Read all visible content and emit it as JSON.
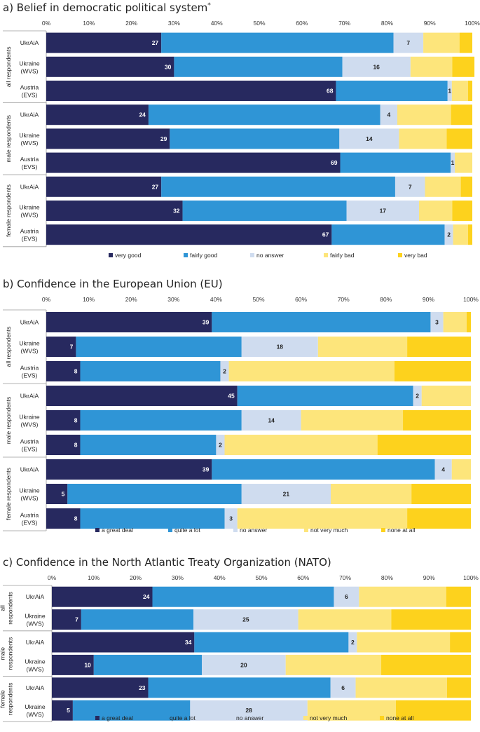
{
  "colors": {
    "very_dark": "#27295f",
    "blue": "#2f95d6",
    "light": "#cfdcef",
    "pale_yellow": "#fde57b",
    "yellow": "#fdd21d"
  },
  "x_tick_labels": [
    "0%",
    "10%",
    "20%",
    "30%",
    "40%",
    "50%",
    "60%",
    "70%",
    "80%",
    "90%",
    "100%"
  ],
  "chart_data": [
    {
      "type": "bar",
      "stacked": true,
      "orientation": "horizontal",
      "title": "a) Belief in democratic political system",
      "title_superscript": "*",
      "xlim": [
        0,
        100
      ],
      "legend": [
        "very good",
        "fairly good",
        "no answer",
        "fairly bad",
        "very bad"
      ],
      "groups": [
        {
          "label": "all respondents",
          "rows": [
            {
              "label": [
                "UkrAiA"
              ],
              "values": [
                27,
                54.5,
                7,
                8.5,
                3
              ],
              "shown": [
                27,
                null,
                7,
                null,
                null
              ]
            },
            {
              "label": [
                "Ukraine",
                "(WVS)"
              ],
              "values": [
                30,
                39.5,
                16,
                9.8,
                5.2
              ],
              "shown": [
                30,
                null,
                16,
                null,
                null
              ]
            },
            {
              "label": [
                "Austria",
                "(EVS)"
              ],
              "values": [
                68,
                26.2,
                1,
                3.8,
                1
              ],
              "shown": [
                68,
                null,
                1,
                null,
                null
              ]
            }
          ]
        },
        {
          "label": "male respondents",
          "rows": [
            {
              "label": [
                "UkrAiA"
              ],
              "values": [
                24,
                54.4,
                4,
                12.6,
                5
              ],
              "shown": [
                24,
                null,
                4,
                null,
                null
              ]
            },
            {
              "label": [
                "Ukraine",
                "(WVS)"
              ],
              "values": [
                29,
                39.8,
                14,
                11.2,
                6
              ],
              "shown": [
                29,
                null,
                14,
                null,
                null
              ]
            },
            {
              "label": [
                "Austria",
                "(EVS)"
              ],
              "values": [
                69,
                25.9,
                1,
                4.1,
                0
              ],
              "shown": [
                69,
                null,
                1,
                null,
                null
              ]
            }
          ]
        },
        {
          "label": "female respondents",
          "rows": [
            {
              "label": [
                "UkrAiA"
              ],
              "values": [
                27,
                54.9,
                7,
                8.4,
                2.7
              ],
              "shown": [
                27,
                null,
                7,
                null,
                null
              ]
            },
            {
              "label": [
                "Ukraine",
                "(WVS)"
              ],
              "values": [
                32,
                38.5,
                17,
                7.8,
                4.7
              ],
              "shown": [
                32,
                null,
                17,
                null,
                null
              ]
            },
            {
              "label": [
                "Austria",
                "(EVS)"
              ],
              "values": [
                67,
                26.5,
                2,
                3.5,
                1
              ],
              "shown": [
                67,
                null,
                2,
                null,
                null
              ]
            }
          ]
        }
      ]
    },
    {
      "type": "bar",
      "stacked": true,
      "orientation": "horizontal",
      "title": "b) Confidence in the European Union (EU)",
      "title_superscript": "",
      "xlim": [
        0,
        100
      ],
      "legend": [
        "a great deal",
        "quite a lot",
        "no answer",
        "not very much",
        "none at all"
      ],
      "groups": [
        {
          "label": "all respondents",
          "rows": [
            {
              "label": [
                "UkrAiA"
              ],
              "values": [
                39,
                51.5,
                3,
                5.5,
                1
              ],
              "shown": [
                39,
                null,
                3,
                null,
                null
              ]
            },
            {
              "label": [
                "Ukraine",
                "(WVS)"
              ],
              "values": [
                7,
                39,
                18,
                21,
                15
              ],
              "shown": [
                7,
                null,
                18,
                null,
                null
              ]
            },
            {
              "label": [
                "Austria",
                "(EVS)"
              ],
              "values": [
                8,
                33,
                2,
                39,
                18
              ],
              "shown": [
                8,
                null,
                2,
                null,
                null
              ]
            }
          ]
        },
        {
          "label": "male respondents",
          "rows": [
            {
              "label": [
                "UkrAiA"
              ],
              "values": [
                45,
                41.4,
                2,
                11.6,
                0
              ],
              "shown": [
                45,
                null,
                2,
                null,
                null
              ]
            },
            {
              "label": [
                "Ukraine",
                "(WVS)"
              ],
              "values": [
                8,
                38,
                14,
                24,
                16
              ],
              "shown": [
                8,
                null,
                14,
                null,
                null
              ]
            },
            {
              "label": [
                "Austria",
                "(EVS)"
              ],
              "values": [
                8,
                32,
                2,
                36,
                22
              ],
              "shown": [
                8,
                null,
                2,
                null,
                null
              ]
            }
          ]
        },
        {
          "label": "female respondents",
          "rows": [
            {
              "label": [
                "UkrAiA"
              ],
              "values": [
                39,
                52.5,
                4,
                4.5,
                0
              ],
              "shown": [
                39,
                null,
                4,
                null,
                null
              ]
            },
            {
              "label": [
                "Ukraine",
                "(WVS)"
              ],
              "values": [
                5,
                41,
                21,
                19,
                14
              ],
              "shown": [
                5,
                null,
                21,
                null,
                null
              ]
            },
            {
              "label": [
                "Austria",
                "(EVS)"
              ],
              "values": [
                8,
                34,
                3,
                40,
                15
              ],
              "shown": [
                8,
                null,
                3,
                null,
                null
              ]
            }
          ]
        }
      ]
    },
    {
      "type": "bar",
      "stacked": true,
      "orientation": "horizontal",
      "title": "c) Confidence in the North Atlantic Treaty Organization (NATO)",
      "title_superscript": "",
      "xlim": [
        0,
        100
      ],
      "legend": [
        "a great deal",
        "quite a lot",
        "no answer",
        "not very much",
        "none at all"
      ],
      "groups": [
        {
          "label": "all respondents",
          "label_lines": [
            "all",
            "respondents"
          ],
          "rows": [
            {
              "label": [
                "UkrAiA"
              ],
              "values": [
                24,
                43.3,
                6,
                20.8,
                5.9
              ],
              "shown": [
                24,
                null,
                6,
                null,
                null
              ]
            },
            {
              "label": [
                "Ukraine",
                "(WVS)"
              ],
              "values": [
                7,
                26.8,
                25,
                22.2,
                19
              ],
              "shown": [
                7,
                null,
                25,
                null,
                null
              ]
            }
          ]
        },
        {
          "label": "male respondents",
          "label_lines": [
            "male",
            "respondents"
          ],
          "rows": [
            {
              "label": [
                "UkrAiA"
              ],
              "values": [
                34,
                36.8,
                2,
                22.2,
                5
              ],
              "shown": [
                34,
                null,
                2,
                null,
                null
              ]
            },
            {
              "label": [
                "Ukraine",
                "(WVS)"
              ],
              "values": [
                10,
                25.8,
                20,
                22.8,
                21.4
              ],
              "shown": [
                10,
                null,
                20,
                null,
                null
              ]
            }
          ]
        },
        {
          "label": "female respondents",
          "label_lines": [
            "female",
            "respondents"
          ],
          "rows": [
            {
              "label": [
                "UkrAiA"
              ],
              "values": [
                23,
                43.5,
                6,
                21.8,
                5.7
              ],
              "shown": [
                23,
                null,
                6,
                null,
                null
              ]
            },
            {
              "label": [
                "Ukraine",
                "(WVS)"
              ],
              "values": [
                5,
                28,
                28,
                21.1,
                17.9
              ],
              "shown": [
                5,
                null,
                28,
                null,
                null
              ]
            }
          ]
        }
      ]
    }
  ]
}
